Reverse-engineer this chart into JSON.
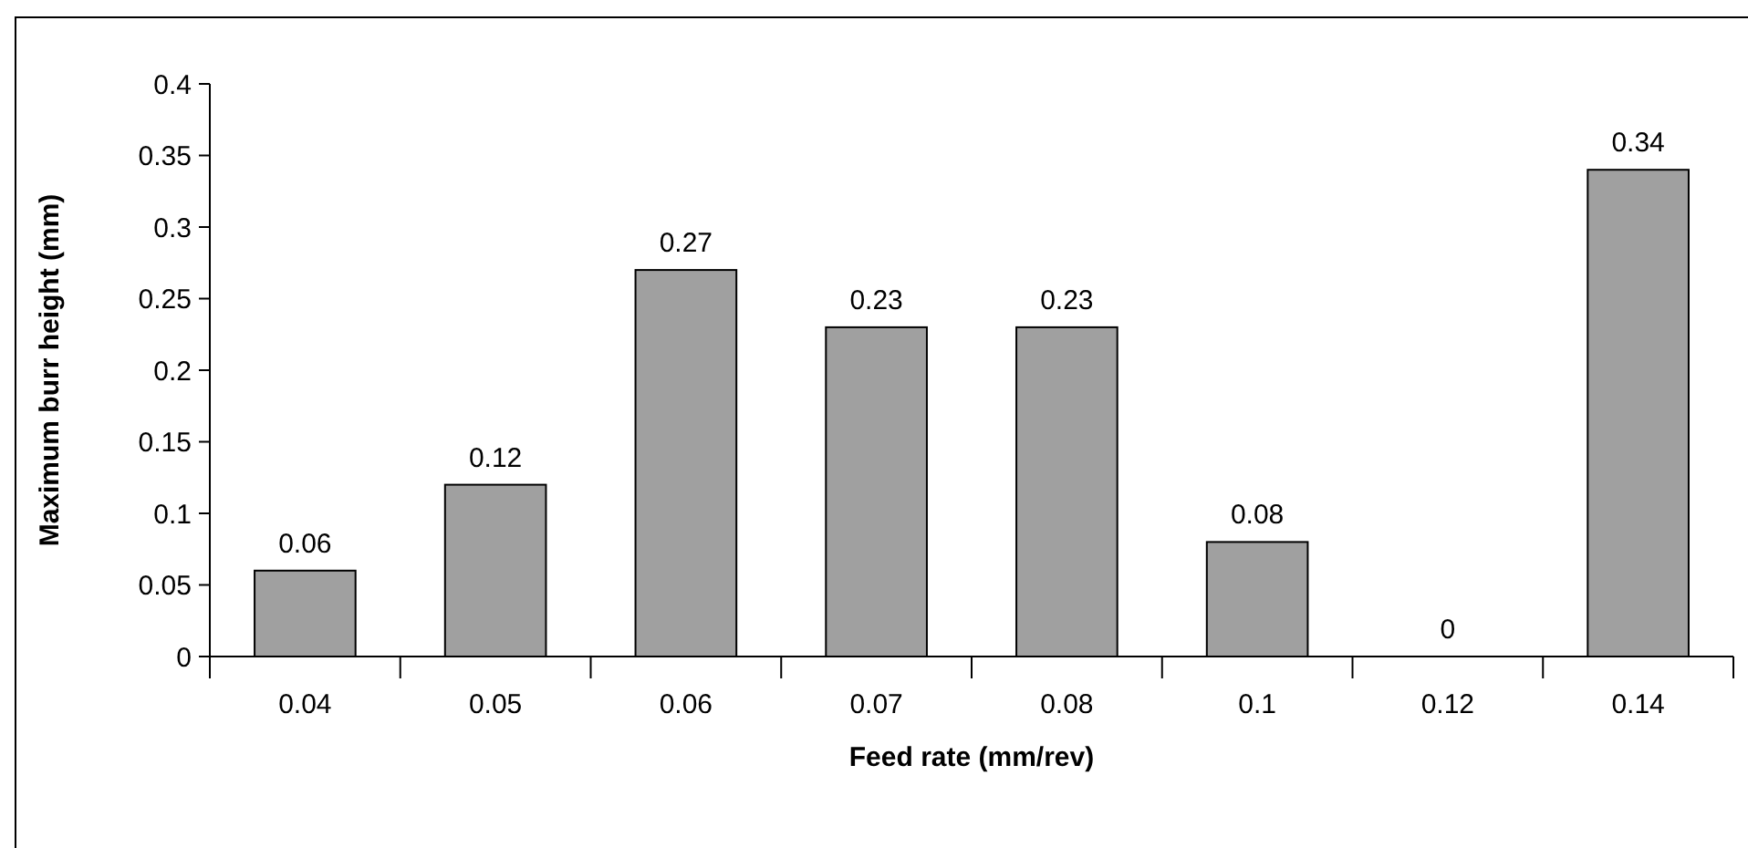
{
  "chart_data": {
    "type": "bar",
    "xlabel": "Feed rate (mm/rev)",
    "ylabel": "Maximum burr height (mm)",
    "categories": [
      "0.04",
      "0.05",
      "0.06",
      "0.07",
      "0.08",
      "0.1",
      "0.12",
      "0.14"
    ],
    "values": [
      0.06,
      0.12,
      0.27,
      0.23,
      0.23,
      0.08,
      0,
      0.34
    ],
    "color": "#a0a0a0",
    "ylim": [
      0,
      0.4
    ],
    "yticks": [
      0,
      0.05,
      0.1,
      0.15,
      0.2,
      0.25,
      0.3,
      0.35,
      0.4
    ],
    "data_labels": true
  }
}
